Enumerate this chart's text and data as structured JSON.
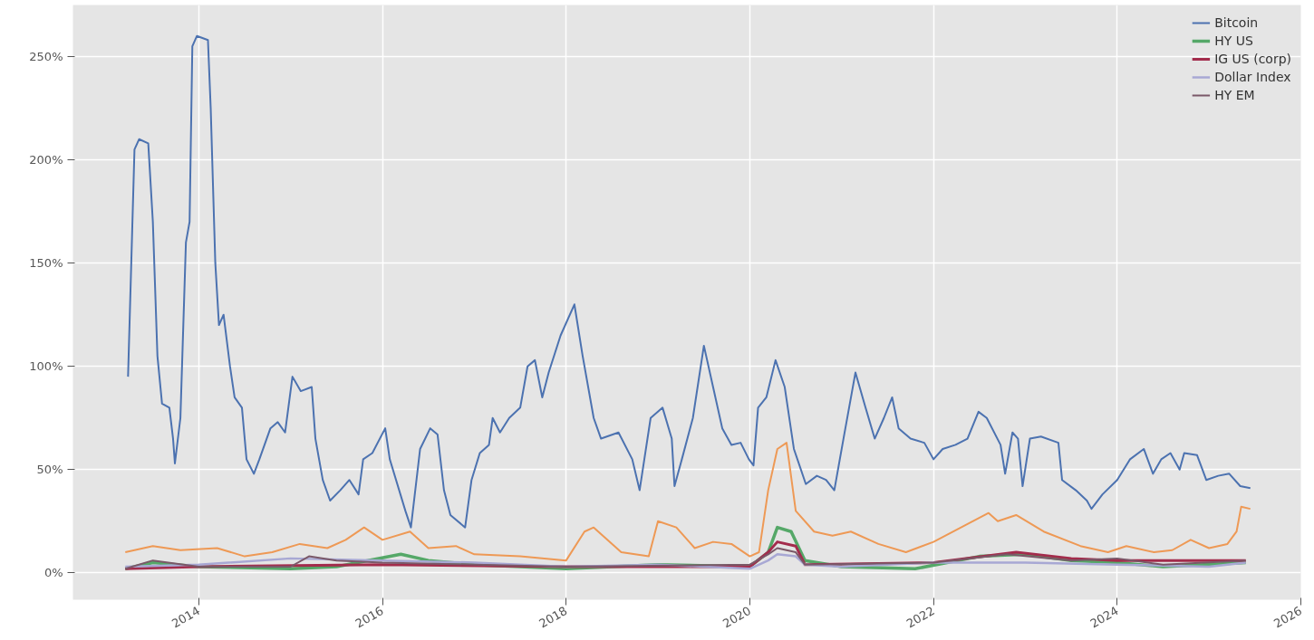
{
  "chart_data": {
    "type": "line",
    "xlim": [
      2012.63,
      2026.0
    ],
    "xticks": [
      2014,
      2016,
      2018,
      2020,
      2022,
      2024,
      2026
    ],
    "ylim": [
      -13,
      275
    ],
    "yticks": [
      {
        "value": 0,
        "label": "0%"
      },
      {
        "value": 50,
        "label": "50%"
      },
      {
        "value": 100,
        "label": "100%"
      },
      {
        "value": 150,
        "label": "150%"
      },
      {
        "value": 200,
        "label": "200%"
      },
      {
        "value": 250,
        "label": "250%"
      }
    ],
    "grid": true,
    "legend": "top right",
    "line_style": "solid",
    "marker": "none",
    "series": [
      {
        "name": "Bitcoin",
        "color": "#4c72b0",
        "x": [
          2013.23,
          2013.3,
          2013.35,
          2013.45,
          2013.5,
          2013.55,
          2013.6,
          2013.68,
          2013.72,
          2013.74,
          2013.8,
          2013.86,
          2013.9,
          2013.93,
          2013.98,
          2014.1,
          2014.13,
          2014.18,
          2014.22,
          2014.27,
          2014.34,
          2014.39,
          2014.47,
          2014.52,
          2014.6,
          2014.66,
          2014.78,
          2014.86,
          2014.94,
          2015.02,
          2015.11,
          2015.23,
          2015.27,
          2015.35,
          2015.43,
          2015.54,
          2015.64,
          2015.74,
          2015.79,
          2015.89,
          2016.03,
          2016.08,
          2016.25,
          2016.31,
          2016.41,
          2016.52,
          2016.6,
          2016.67,
          2016.74,
          2016.9,
          2016.97,
          2017.06,
          2017.16,
          2017.2,
          2017.28,
          2017.38,
          2017.5,
          2017.58,
          2017.66,
          2017.74,
          2017.81,
          2017.94,
          2018.09,
          2018.18,
          2018.3,
          2018.38,
          2018.57,
          2018.72,
          2018.8,
          2018.92,
          2019.05,
          2019.15,
          2019.18,
          2019.26,
          2019.38,
          2019.5,
          2019.6,
          2019.7,
          2019.8,
          2019.9,
          2019.99,
          2020.04,
          2020.09,
          2020.18,
          2020.28,
          2020.38,
          2020.48,
          2020.61,
          2020.73,
          2020.83,
          2020.92,
          2021.02,
          2021.15,
          2021.26,
          2021.36,
          2021.46,
          2021.55,
          2021.62,
          2021.75,
          2021.9,
          2022.0,
          2022.1,
          2022.24,
          2022.37,
          2022.49,
          2022.58,
          2022.73,
          2022.78,
          2022.86,
          2022.92,
          2022.97,
          2023.05,
          2023.17,
          2023.36,
          2023.4,
          2023.55,
          2023.67,
          2023.72,
          2023.84,
          2024.0,
          2024.14,
          2024.29,
          2024.39,
          2024.48,
          2024.58,
          2024.68,
          2024.73,
          2024.87,
          2024.97,
          2025.1,
          2025.22,
          2025.34,
          2025.45
        ],
        "values": [
          95,
          205,
          210,
          208,
          170,
          105,
          82,
          80,
          65,
          53,
          75,
          160,
          170,
          255,
          260,
          258,
          225,
          150,
          120,
          125,
          100,
          85,
          80,
          55,
          48,
          55,
          70,
          73,
          68,
          95,
          88,
          90,
          65,
          45,
          35,
          40,
          45,
          38,
          55,
          58,
          70,
          55,
          30,
          22,
          60,
          70,
          67,
          40,
          28,
          22,
          45,
          58,
          62,
          75,
          68,
          75,
          80,
          100,
          103,
          85,
          97,
          115,
          130,
          105,
          75,
          65,
          68,
          55,
          40,
          75,
          80,
          65,
          42,
          55,
          75,
          110,
          90,
          70,
          62,
          63,
          55,
          52,
          80,
          85,
          103,
          90,
          60,
          43,
          47,
          45,
          40,
          65,
          97,
          80,
          65,
          75,
          85,
          70,
          65,
          63,
          55,
          60,
          62,
          65,
          78,
          75,
          62,
          48,
          68,
          65,
          42,
          65,
          66,
          63,
          45,
          40,
          35,
          31,
          38,
          45,
          55,
          60,
          48,
          55,
          58,
          50,
          58,
          57,
          45,
          47,
          48,
          42,
          41
        ]
      },
      {
        "color": "#ee9955",
        "x": [
          2013.2,
          2013.5,
          2013.8,
          2014.2,
          2014.5,
          2014.8,
          2015.1,
          2015.4,
          2015.6,
          2015.8,
          2016.0,
          2016.3,
          2016.5,
          2016.8,
          2017.0,
          2017.5,
          2018.0,
          2018.2,
          2018.3,
          2018.6,
          2018.9,
          2019.0,
          2019.2,
          2019.4,
          2019.6,
          2019.8,
          2020.0,
          2020.1,
          2020.2,
          2020.3,
          2020.4,
          2020.5,
          2020.7,
          2020.9,
          2021.1,
          2021.4,
          2021.7,
          2022.0,
          2022.3,
          2022.6,
          2022.7,
          2022.9,
          2023.2,
          2023.6,
          2023.9,
          2024.1,
          2024.4,
          2024.6,
          2024.8,
          2025.0,
          2025.2,
          2025.3,
          2025.35,
          2025.45
        ],
        "values": [
          10,
          13,
          11,
          12,
          8,
          10,
          14,
          12,
          16,
          22,
          16,
          20,
          12,
          13,
          9,
          8,
          6,
          20,
          22,
          10,
          8,
          25,
          22,
          12,
          15,
          14,
          8,
          10,
          40,
          60,
          63,
          30,
          20,
          18,
          20,
          14,
          10,
          15,
          22,
          29,
          25,
          28,
          20,
          13,
          10,
          13,
          10,
          11,
          16,
          12,
          14,
          20,
          32,
          31
        ]
      },
      {
        "name": "HY US",
        "color": "#55a868",
        "x": [
          2013.2,
          2013.5,
          2014.0,
          2015.0,
          2015.5,
          2016.2,
          2016.5,
          2017.0,
          2018.0,
          2019.0,
          2020.0,
          2020.2,
          2020.3,
          2020.45,
          2020.6,
          2021.0,
          2021.8,
          2022.5,
          2023.0,
          2023.5,
          2024.0,
          2024.5,
          2025.4
        ],
        "values": [
          2,
          5,
          3,
          2,
          3,
          9,
          6,
          4,
          2,
          4,
          3,
          10,
          22,
          20,
          6,
          3,
          2,
          8,
          9,
          6,
          5,
          3,
          5
        ]
      },
      {
        "name": "IG US (corp)",
        "color": "#a32c4c",
        "x": [
          2013.2,
          2014.0,
          2016.0,
          2018.0,
          2020.0,
          2020.2,
          2020.3,
          2020.5,
          2020.6,
          2022.0,
          2022.9,
          2023.5,
          2024.0,
          2024.5,
          2025.4
        ],
        "values": [
          2,
          3,
          4,
          3,
          3,
          10,
          15,
          13,
          4,
          5,
          10,
          7,
          6,
          6,
          6
        ]
      },
      {
        "name": "Dollar Index",
        "color": "#a8a8d4",
        "x": [
          2013.2,
          2014.0,
          2015.0,
          2016.0,
          2017.0,
          2018.0,
          2019.0,
          2020.0,
          2020.2,
          2020.3,
          2020.5,
          2020.6,
          2021.0,
          2022.0,
          2023.0,
          2024.0,
          2025.0,
          2025.4
        ],
        "values": [
          3,
          4,
          7,
          6,
          5,
          3,
          4,
          2,
          6,
          9,
          8,
          4,
          3,
          5,
          5,
          4,
          3,
          5
        ]
      },
      {
        "name": "HY EM",
        "color": "#7a5868",
        "x": [
          2013.2,
          2013.5,
          2014.0,
          2015.0,
          2015.2,
          2015.5,
          2016.0,
          2017.0,
          2018.0,
          2020.0,
          2020.2,
          2020.3,
          2020.5,
          2020.6,
          2022.0,
          2022.8,
          2023.5,
          2024.0,
          2024.5,
          2025.4
        ],
        "values": [
          2,
          6,
          3,
          3,
          8,
          6,
          5,
          4,
          3,
          4,
          9,
          12,
          10,
          4,
          5,
          9,
          6,
          7,
          4,
          6
        ]
      }
    ]
  }
}
